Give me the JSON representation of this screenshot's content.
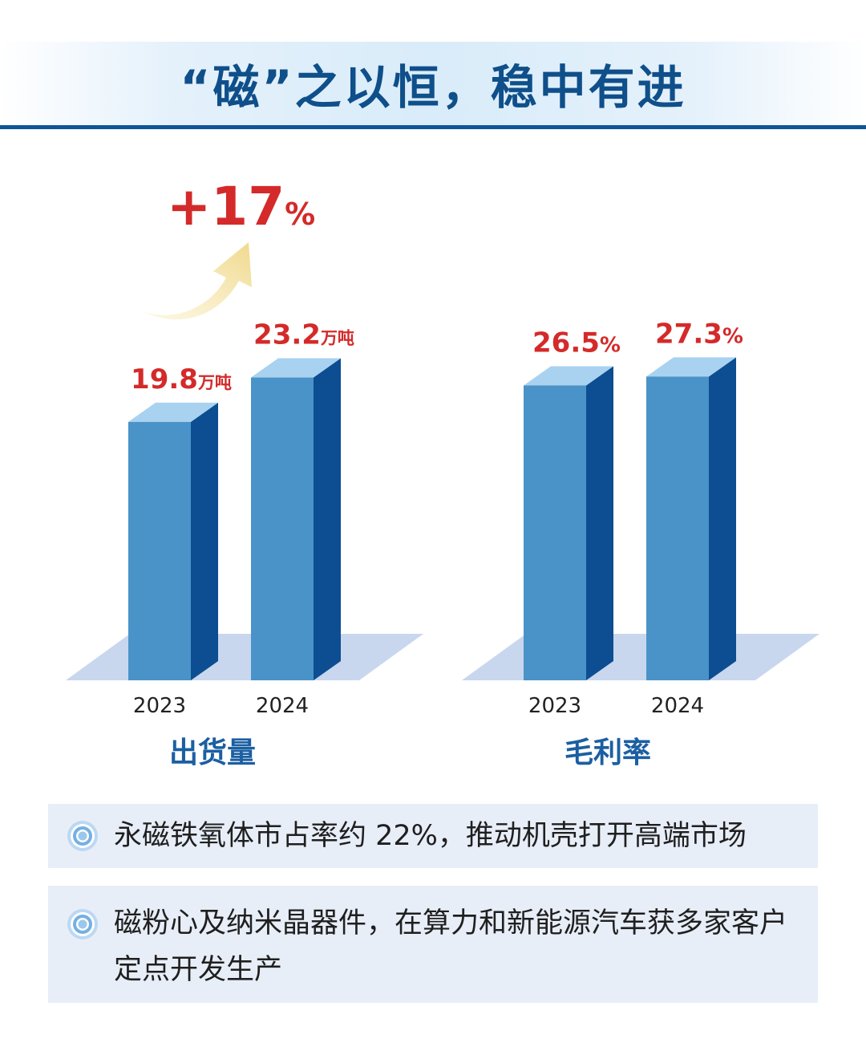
{
  "header": {
    "title": "“磁”之以恒，稳中有进"
  },
  "chart_data": [
    {
      "type": "bar",
      "title": "出货量",
      "categories": [
        "2023",
        "2024"
      ],
      "values": [
        19.8,
        23.2
      ],
      "value_labels": [
        "19.8",
        "23.2"
      ],
      "unit": "万吨",
      "growth_label": "+17%",
      "ylim": [
        0,
        26
      ]
    },
    {
      "type": "bar",
      "title": "毛利率",
      "categories": [
        "2023",
        "2024"
      ],
      "values": [
        26.5,
        27.3
      ],
      "value_labels": [
        "26.5",
        "27.3"
      ],
      "unit": "%",
      "ylim": [
        0,
        30.5
      ]
    }
  ],
  "colors": {
    "title": "#0f4f8a",
    "bar_front": "#4a93c8",
    "bar_side": "#0d4d91",
    "bar_top": "#a9d2f0",
    "floor": "#c8d7ee",
    "value_label": "#d42a2a",
    "chart_title": "#1b5fa2"
  },
  "notes": [
    {
      "text": "永磁铁氧体市占率约 22%，推动机壳打开高端市场",
      "icon": "concentric-circle-icon"
    },
    {
      "text": "磁粉心及纳米晶器件，在算力和新能源汽车获多家客户定点开发生产",
      "icon": "concentric-circle-icon"
    }
  ]
}
